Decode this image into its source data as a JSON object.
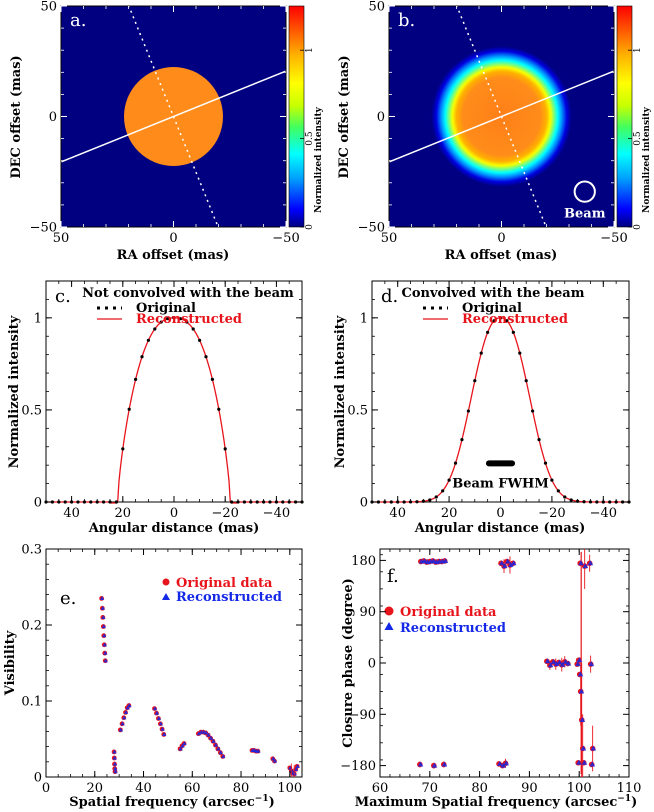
{
  "chart_data": [
    {
      "id": "a",
      "type": "heatmap",
      "panel_label": "a.",
      "xlabel": "RA offset (mas)",
      "ylabel": "DEC offset (mas)",
      "xlim": [
        50,
        -50
      ],
      "ylim": [
        -50,
        50
      ],
      "x_ticks": [
        50,
        0,
        -50
      ],
      "y_ticks": [
        -50,
        0,
        50
      ],
      "disk_radius_mas": 22,
      "disk_intensity": 0.8,
      "convolved": false,
      "colorbar": {
        "label": "Normalized intensity",
        "ticks": [
          "0",
          "0.5",
          "1"
        ],
        "tick_values": [
          0,
          0.5,
          1
        ],
        "range": [
          0,
          1.25
        ]
      },
      "lines": {
        "solid_pa_deg": 112,
        "dotted_pa_deg": 22
      }
    },
    {
      "id": "b",
      "type": "heatmap",
      "panel_label": "b.",
      "xlabel": "RA offset (mas)",
      "ylabel": "DEC offset (mas)",
      "xlim": [
        50,
        -50
      ],
      "ylim": [
        -50,
        50
      ],
      "x_ticks": [
        50,
        0,
        -50
      ],
      "y_ticks": [
        -50,
        0,
        50
      ],
      "disk_radius_mas": 22,
      "disk_intensity": 0.8,
      "convolved": true,
      "beam_label": "Beam",
      "beam_center_mas": [
        -37,
        -34
      ],
      "beam_radius_mas": 4.5,
      "colorbar": {
        "label": "Normalized intensity",
        "ticks": [
          "0",
          "0.5",
          "1"
        ],
        "tick_values": [
          0,
          0.5,
          1
        ],
        "range": [
          0,
          1.25
        ]
      },
      "lines": {
        "solid_pa_deg": 112,
        "dotted_pa_deg": 22
      }
    },
    {
      "id": "c",
      "type": "line",
      "panel_label": "c.",
      "title": "Not convolved with the beam",
      "xlabel": "Angular distance (mas)",
      "ylabel": "Normalized intensity",
      "xlim": [
        50,
        -50
      ],
      "ylim": [
        0,
        1.2
      ],
      "x_ticks": [
        40,
        20,
        0,
        -20,
        -40
      ],
      "y_ticks": [
        0,
        0.5,
        1
      ],
      "y_tick_labels": [
        "0",
        "0.5",
        "1"
      ],
      "legend": [
        "Original",
        "Reconstructed"
      ],
      "series_colors": [
        "#000000",
        "#e8141c"
      ],
      "profile": "disk",
      "edge_mas": 22
    },
    {
      "id": "d",
      "type": "line",
      "panel_label": "d.",
      "title": "Convolved with the beam",
      "xlabel": "Angular distance (mas)",
      "ylabel": "Normalized intensity",
      "xlim": [
        50,
        -50
      ],
      "ylim": [
        0,
        1.2
      ],
      "x_ticks": [
        40,
        20,
        0,
        -20,
        -40
      ],
      "y_ticks": [
        0,
        0.5,
        1
      ],
      "y_tick_labels": [
        "0",
        "0.5",
        "1"
      ],
      "legend": [
        "Original",
        "Reconstructed"
      ],
      "series_colors": [
        "#000000",
        "#e8141c"
      ],
      "profile": "convolved",
      "edge_mas": 25,
      "beam_fwhm_label": "Beam FWHM",
      "beam_fwhm_mas": [
        4.5,
        -4.5
      ],
      "beam_fwhm_y": 0.21
    },
    {
      "id": "e",
      "type": "scatter",
      "panel_label": "e.",
      "xlabel": "Spatial frequency (arcsec",
      "xlabel_sup": "−1",
      "xlabel_tail": ")",
      "ylabel": "Visibility",
      "xlim": [
        0,
        105
      ],
      "ylim": [
        0,
        0.3
      ],
      "x_ticks": [
        0,
        20,
        40,
        60,
        80,
        100
      ],
      "y_ticks": [
        0,
        0.1,
        0.2,
        0.3
      ],
      "y_tick_labels": [
        "0",
        "0.1",
        "0.2",
        "0.3"
      ],
      "legend": [
        "Original data",
        "Reconstructed"
      ],
      "series_colors": [
        "#e8141c",
        "#1428e8"
      ],
      "clusters": [
        [
          [
            22.8,
            0.235
          ],
          [
            23.1,
            0.222
          ],
          [
            23.3,
            0.21
          ],
          [
            23.5,
            0.198
          ],
          [
            23.7,
            0.186
          ],
          [
            23.9,
            0.174
          ],
          [
            24.1,
            0.163
          ],
          [
            24.3,
            0.153
          ]
        ],
        [
          [
            27.9,
            0.033
          ],
          [
            28.0,
            0.025
          ],
          [
            28.1,
            0.017
          ],
          [
            28.2,
            0.011
          ],
          [
            28.3,
            0.007
          ]
        ],
        [
          [
            30.5,
            0.062
          ],
          [
            31.2,
            0.07
          ],
          [
            31.9,
            0.078
          ],
          [
            32.6,
            0.085
          ],
          [
            33.3,
            0.091
          ],
          [
            34.0,
            0.094
          ]
        ],
        [
          [
            44.5,
            0.09
          ],
          [
            45.3,
            0.084
          ],
          [
            46.1,
            0.077
          ],
          [
            46.9,
            0.07
          ],
          [
            47.6,
            0.063
          ],
          [
            48.3,
            0.056
          ]
        ],
        [
          [
            55.0,
            0.037
          ],
          [
            55.8,
            0.041
          ],
          [
            56.6,
            0.044
          ]
        ],
        [
          [
            62.5,
            0.057
          ],
          [
            63.5,
            0.059
          ],
          [
            64.5,
            0.059
          ],
          [
            65.5,
            0.058
          ],
          [
            66.5,
            0.055
          ],
          [
            67.5,
            0.051
          ],
          [
            68.5,
            0.047
          ],
          [
            69.5,
            0.042
          ],
          [
            70.5,
            0.037
          ],
          [
            71.5,
            0.032
          ],
          [
            72.5,
            0.027
          ]
        ],
        [
          [
            84.5,
            0.035
          ],
          [
            85.3,
            0.035
          ],
          [
            86.1,
            0.034
          ],
          [
            86.9,
            0.034
          ]
        ],
        [
          [
            93.0,
            0.024
          ],
          [
            93.7,
            0.021
          ]
        ],
        [
          [
            100.0,
            0.012
          ],
          [
            100.6,
            0.008
          ],
          [
            101.2,
            0.005
          ],
          [
            101.8,
            0.004
          ],
          [
            102.4,
            0.01
          ],
          [
            103.0,
            0.014
          ]
        ]
      ]
    },
    {
      "id": "f",
      "type": "scatter",
      "panel_label": "f.",
      "xlabel": "Maximum Spatial frequency (arcsec",
      "xlabel_sup": "−1",
      "xlabel_tail": ")",
      "ylabel": "Closure phase (degree)",
      "xlim": [
        60,
        110
      ],
      "ylim": [
        -200,
        200
      ],
      "x_ticks": [
        60,
        70,
        80,
        90,
        100,
        110
      ],
      "y_ticks": [
        -180,
        -90,
        0,
        90,
        180
      ],
      "y_tick_labels": [
        "−180",
        "−90",
        "0",
        "90",
        "180"
      ],
      "legend": [
        "Original data",
        "Reconstructed"
      ],
      "series_colors": [
        "#e8141c",
        "#1428e8"
      ],
      "points": [
        [
          68.2,
          178
        ],
        [
          68.8,
          179
        ],
        [
          69.4,
          177
        ],
        [
          70.0,
          178
        ],
        [
          70.6,
          179
        ],
        [
          71.2,
          177
        ],
        [
          71.8,
          178
        ],
        [
          72.4,
          178
        ],
        [
          73.0,
          179
        ],
        [
          68.0,
          -178
        ],
        [
          70.8,
          -180
        ],
        [
          72.8,
          -178
        ],
        [
          84.3,
          175
        ],
        [
          84.9,
          170
        ],
        [
          85.5,
          178
        ],
        [
          86.1,
          172
        ],
        [
          86.7,
          175
        ],
        [
          83.9,
          -177
        ],
        [
          84.6,
          -180
        ],
        [
          85.2,
          -176
        ],
        [
          93.5,
          3
        ],
        [
          94.1,
          -4
        ],
        [
          94.7,
          2
        ],
        [
          95.3,
          -2
        ],
        [
          95.9,
          1
        ],
        [
          96.5,
          -3
        ],
        [
          97.1,
          2
        ],
        [
          97.7,
          -1
        ],
        [
          99.6,
          -2
        ],
        [
          99.9,
          5
        ],
        [
          100.1,
          -20
        ],
        [
          100.3,
          -50
        ],
        [
          100.5,
          -100
        ],
        [
          100.7,
          -150
        ],
        [
          100.9,
          -175
        ],
        [
          101.1,
          170
        ],
        [
          99.8,
          -175
        ],
        [
          100.2,
          175
        ],
        [
          102.1,
          175
        ],
        [
          102.3,
          -2
        ],
        [
          102.5,
          -178
        ],
        [
          102.7,
          -150
        ]
      ],
      "error_bars": [
        [
          69.0,
          178,
          4
        ],
        [
          71.5,
          177,
          4
        ],
        [
          73.0,
          179,
          4
        ],
        [
          68.0,
          -178,
          5
        ],
        [
          70.8,
          -180,
          5
        ],
        [
          72.8,
          -178,
          5
        ],
        [
          84.9,
          170,
          12
        ],
        [
          86.1,
          172,
          15
        ],
        [
          85.2,
          -176,
          8
        ],
        [
          94.1,
          -4,
          8
        ],
        [
          95.3,
          -2,
          10
        ],
        [
          96.5,
          -3,
          12
        ],
        [
          97.1,
          2,
          10
        ],
        [
          100.3,
          -50,
          60
        ],
        [
          100.5,
          -100,
          100
        ],
        [
          100.7,
          -150,
          60
        ],
        [
          101.1,
          170,
          40
        ],
        [
          102.3,
          -2,
          15
        ],
        [
          102.1,
          175,
          15
        ],
        [
          102.7,
          -150,
          40
        ]
      ]
    }
  ]
}
